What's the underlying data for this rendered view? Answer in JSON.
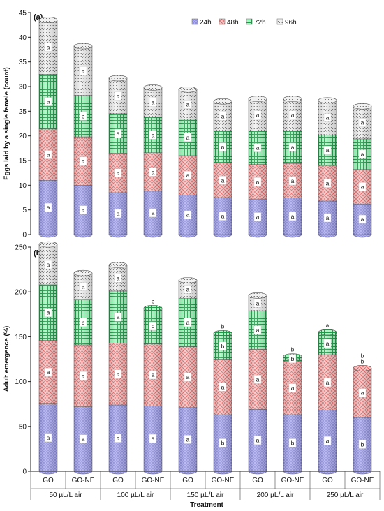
{
  "chart_data": [
    {
      "type": "bar",
      "stacked": true,
      "panel_label": "(a)",
      "ylabel": "Eggs laid by a single female (count)",
      "ylim": [
        0,
        45
      ],
      "yticks": [
        0,
        5,
        10,
        15,
        20,
        25,
        30,
        35,
        40,
        45
      ],
      "grid": false,
      "legend_position": "top-right",
      "categories": [
        "GO",
        "GO-NE",
        "GO",
        "GO-NE",
        "GO",
        "GO-NE",
        "GO",
        "GO-NE",
        "GO",
        "GO-NE"
      ],
      "groups": [
        "50 µL/L air",
        "100 µL/L air",
        "150 µL/L air",
        "200 µL/L air",
        "250 µL/L air"
      ],
      "series": [
        {
          "name": "24h",
          "color": "#8f8fe8",
          "pattern": "dots",
          "values": [
            11.0,
            10.0,
            8.5,
            8.8,
            8.0,
            7.5,
            7.2,
            7.4,
            6.8,
            6.2
          ],
          "labels": [
            "a",
            "a",
            "a",
            "a",
            "a",
            "a",
            "a",
            "a",
            "a",
            "a"
          ]
        },
        {
          "name": "48h",
          "color": "#ee8a8a",
          "pattern": "cross",
          "values": [
            10.4,
            9.8,
            8.0,
            7.8,
            8.0,
            7.0,
            7.0,
            7.0,
            7.2,
            7.0
          ],
          "labels": [
            "a",
            "a",
            "a",
            "a",
            "a",
            "a",
            "a",
            "a",
            "a",
            "a"
          ]
        },
        {
          "name": "72h",
          "color": "#3fa85f",
          "pattern": "grid",
          "values": [
            11.1,
            8.4,
            8.0,
            7.2,
            7.4,
            6.5,
            6.8,
            6.6,
            6.2,
            6.2
          ],
          "labels": [
            "a",
            "b",
            "a",
            "a",
            "a",
            "a",
            "a",
            "a",
            "a",
            "a"
          ]
        },
        {
          "name": "96h",
          "color": "#9a9a9a",
          "pattern": "speckle",
          "values": [
            11.0,
            10.0,
            7.2,
            6.0,
            6.0,
            6.0,
            6.5,
            6.5,
            7.0,
            6.6
          ],
          "labels": [
            "a",
            "a",
            "a",
            "a",
            "a",
            "a",
            "a",
            "a",
            "a",
            "a"
          ]
        }
      ]
    },
    {
      "type": "bar",
      "stacked": true,
      "panel_label": "(b)",
      "ylabel": "Adult emergence (%)",
      "ylim": [
        0,
        250
      ],
      "yticks": [
        0,
        50,
        100,
        150,
        200,
        250
      ],
      "grid": false,
      "categories": [
        "GO",
        "GO-NE",
        "GO",
        "GO-NE",
        "GO",
        "GO-NE",
        "GO",
        "GO-NE",
        "GO",
        "GO-NE"
      ],
      "groups": [
        "50 µL/L air",
        "100 µL/L air",
        "150 µL/L air",
        "200 µL/L air",
        "250 µL/L air"
      ],
      "xlabel": "Treatment",
      "series": [
        {
          "name": "24h",
          "color": "#8f8fe8",
          "pattern": "dots",
          "values": [
            75,
            72,
            74,
            73,
            71,
            63,
            69,
            63,
            68,
            60
          ],
          "labels": [
            "a",
            "a",
            "a",
            "a",
            "a",
            "b",
            "a",
            "b",
            "a",
            "b"
          ]
        },
        {
          "name": "48h",
          "color": "#ee8a8a",
          "pattern": "cross",
          "values": [
            71,
            69,
            69,
            69,
            68,
            62,
            67,
            60,
            62,
            55
          ],
          "labels": [
            "a",
            "a",
            "a",
            "a",
            "a",
            "a",
            "a",
            "a",
            "a",
            "a"
          ]
        },
        {
          "name": "72h",
          "color": "#3fa85f",
          "pattern": "grid",
          "values": [
            62,
            50,
            58,
            40,
            54,
            29,
            43,
            5,
            25,
            0
          ],
          "labels": [
            "a",
            "b",
            "a",
            "b",
            "a",
            "b",
            "a",
            "b",
            "a",
            "b"
          ]
        },
        {
          "name": "96h",
          "color": "#9a9a9a",
          "pattern": "speckle",
          "values": [
            45,
            30,
            29,
            0,
            20,
            0,
            17,
            0,
            0,
            0
          ],
          "labels": [
            "a",
            "a",
            "a",
            "b",
            "a",
            "b",
            "a",
            "b",
            "a",
            "b"
          ]
        }
      ]
    }
  ]
}
